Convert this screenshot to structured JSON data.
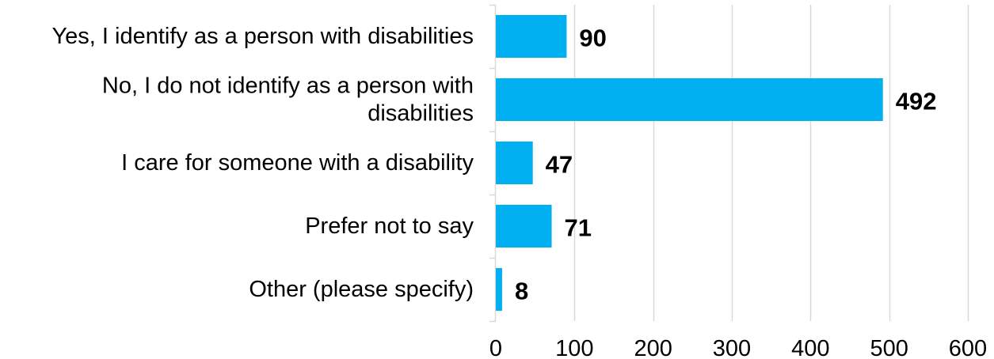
{
  "chart_data": {
    "type": "bar",
    "orientation": "horizontal",
    "categories": [
      [
        "Yes, I identify as a person with disabilities"
      ],
      [
        "No, I do not identify as a person with",
        "disabilities"
      ],
      [
        "I care for someone with a disability"
      ],
      [
        "Prefer not to say"
      ],
      [
        "Other (please specify)"
      ]
    ],
    "values": [
      90,
      492,
      47,
      71,
      8
    ],
    "data_labels": [
      "90",
      "492",
      "47",
      "71",
      "8"
    ],
    "xlim": [
      0,
      600
    ],
    "ticks": [
      0,
      100,
      200,
      300,
      400,
      500,
      600
    ],
    "tick_labels": [
      "0",
      "100",
      "200",
      "300",
      "400",
      "500",
      "600"
    ],
    "grid": true,
    "legend": "none",
    "title": "",
    "xlabel": "",
    "ylabel": "",
    "colors": {
      "bar": "#00B0F0",
      "grid": "#D9D9D9",
      "text": "#000000"
    }
  }
}
